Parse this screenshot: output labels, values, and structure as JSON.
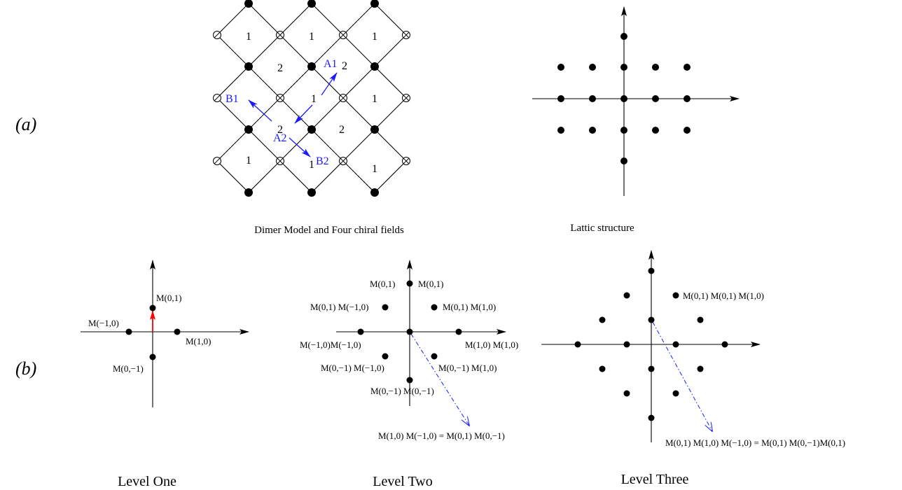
{
  "panels": {
    "a": "(a)",
    "b": "(b)"
  },
  "captions": {
    "dimer": "Dimer Model and Four chiral fields",
    "lattice": "Lattic structure"
  },
  "levels": {
    "one": "Level  One",
    "two": "Level  Two",
    "three": "Level  Three"
  },
  "dimer": {
    "face_labels": [
      "1",
      "1",
      "1",
      "2",
      "2",
      "1",
      "1",
      "2",
      "2",
      "1",
      "1",
      "1"
    ],
    "fields": {
      "a1": "A1",
      "a2": "A2",
      "b1": "B1",
      "b2": "B2"
    }
  },
  "level_one": {
    "labels": {
      "up": "M(0,1)",
      "left": "M(−1,0)",
      "right": "M(1,0)",
      "down": "M(0,−1)"
    }
  },
  "level_two": {
    "labels": {
      "top_left": "M(0,1)",
      "top_right": "M(0,1)",
      "ul": "M(0,1) M(−1,0)",
      "ur": "M(0,1) M(1,0)",
      "left": "M(−1,0)M(−1,0)",
      "right": "M(1,0) M(1,0)",
      "ll": "M(0,−1) M(−1,0)",
      "lr": "M(0,−1) M(1,0)",
      "bottom": "M(0,−1) M(0,−1)"
    },
    "equation": "M(1,0) M(−1,0) = M(0,1) M(0,−1)"
  },
  "level_three": {
    "labels": {
      "ur": "M(0,1) M(0,1) M(1,0)"
    },
    "equation": "M(0,1) M(1,0) M(−1,0) = M(0,1) M(0,−1)M(0,1)"
  },
  "colors": {
    "field_arrow": "#1a1aff",
    "level_one_arrow": "#ff0000",
    "dashed": "#1a1aff"
  }
}
